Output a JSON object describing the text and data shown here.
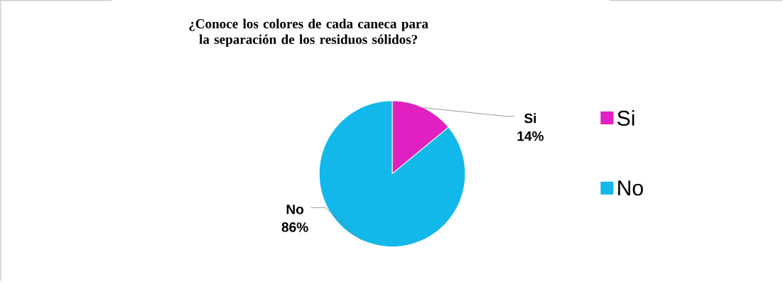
{
  "chart_data": {
    "type": "pie",
    "title": "¿Conoce los colores de cada caneca para la separación de los residuos sólidos?",
    "categories": [
      "Si",
      "No"
    ],
    "values": [
      14,
      86
    ],
    "colors": [
      "#e020c0",
      "#12b8ea"
    ],
    "value_labels": [
      "14%",
      "86%"
    ],
    "legend": "right"
  }
}
